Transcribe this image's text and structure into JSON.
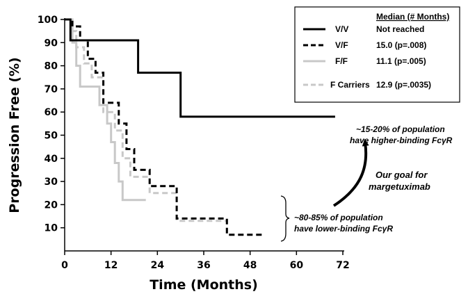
{
  "chart_data": {
    "type": "line",
    "title": "",
    "xlabel": "Time (Months)",
    "ylabel": "Progression Free (%)",
    "xlim": [
      0,
      72
    ],
    "ylim": [
      0,
      100
    ],
    "xticks": [
      0,
      12,
      24,
      36,
      48,
      60,
      72
    ],
    "yticks": [
      10,
      20,
      30,
      40,
      50,
      60,
      70,
      80,
      90,
      100
    ],
    "grid": false,
    "legend_placement": "top-right",
    "legend_header": "Median (# Months)",
    "series": [
      {
        "name": "V/V",
        "median": "Not reached",
        "color": "#000000",
        "style": "solid",
        "points": [
          [
            0,
            100
          ],
          [
            1.5,
            100
          ],
          [
            1.5,
            91
          ],
          [
            19,
            91
          ],
          [
            19,
            77
          ],
          [
            30,
            77
          ],
          [
            30,
            58
          ],
          [
            70,
            58
          ]
        ]
      },
      {
        "name": "V/F",
        "median": "15.0 (p=.008)",
        "color": "#000000",
        "style": "dashed",
        "points": [
          [
            0,
            100
          ],
          [
            2,
            100
          ],
          [
            2,
            97
          ],
          [
            4,
            97
          ],
          [
            4,
            91
          ],
          [
            6,
            91
          ],
          [
            6,
            83
          ],
          [
            8,
            83
          ],
          [
            8,
            77
          ],
          [
            10,
            77
          ],
          [
            10,
            64
          ],
          [
            14,
            64
          ],
          [
            14,
            55
          ],
          [
            16,
            55
          ],
          [
            16,
            44
          ],
          [
            18,
            44
          ],
          [
            18,
            35
          ],
          [
            22,
            35
          ],
          [
            22,
            28
          ],
          [
            29,
            28
          ],
          [
            29,
            14
          ],
          [
            42,
            14
          ],
          [
            42,
            7
          ],
          [
            51,
            7
          ]
        ]
      },
      {
        "name": "F/F",
        "median": "11.1 (p=.005)",
        "color": "#c8c8c8",
        "style": "solid",
        "points": [
          [
            0,
            100
          ],
          [
            2,
            100
          ],
          [
            2,
            90
          ],
          [
            3,
            90
          ],
          [
            3,
            80
          ],
          [
            4,
            80
          ],
          [
            4,
            71
          ],
          [
            9,
            71
          ],
          [
            9,
            63
          ],
          [
            11,
            63
          ],
          [
            11,
            55
          ],
          [
            12,
            55
          ],
          [
            12,
            47
          ],
          [
            13,
            47
          ],
          [
            13,
            38
          ],
          [
            14,
            38
          ],
          [
            14,
            30
          ],
          [
            15,
            30
          ],
          [
            15,
            22
          ],
          [
            21,
            22
          ]
        ]
      },
      {
        "name": "F Carriers",
        "median": "12.9 (p=.0035)",
        "color": "#c8c8c8",
        "style": "dashed",
        "points": [
          [
            0,
            100
          ],
          [
            2,
            100
          ],
          [
            2,
            95
          ],
          [
            3,
            95
          ],
          [
            3,
            88
          ],
          [
            5,
            88
          ],
          [
            5,
            81
          ],
          [
            7,
            81
          ],
          [
            7,
            75
          ],
          [
            10,
            75
          ],
          [
            10,
            60
          ],
          [
            13,
            60
          ],
          [
            13,
            52
          ],
          [
            15,
            52
          ],
          [
            15,
            40
          ],
          [
            17,
            40
          ],
          [
            17,
            32
          ],
          [
            22,
            32
          ],
          [
            22,
            25
          ],
          [
            29,
            25
          ],
          [
            29,
            13
          ],
          [
            42,
            13
          ],
          [
            42,
            7
          ],
          [
            51,
            7
          ]
        ]
      }
    ],
    "annotations": [
      {
        "lines": [
          "~15-20% of population",
          "have higher-binding FcγR"
        ]
      },
      {
        "lines": [
          "~80-85% of population",
          "have lower-binding FcγR"
        ]
      },
      {
        "lines": [
          "Our goal for",
          "margetuximab"
        ]
      }
    ]
  }
}
